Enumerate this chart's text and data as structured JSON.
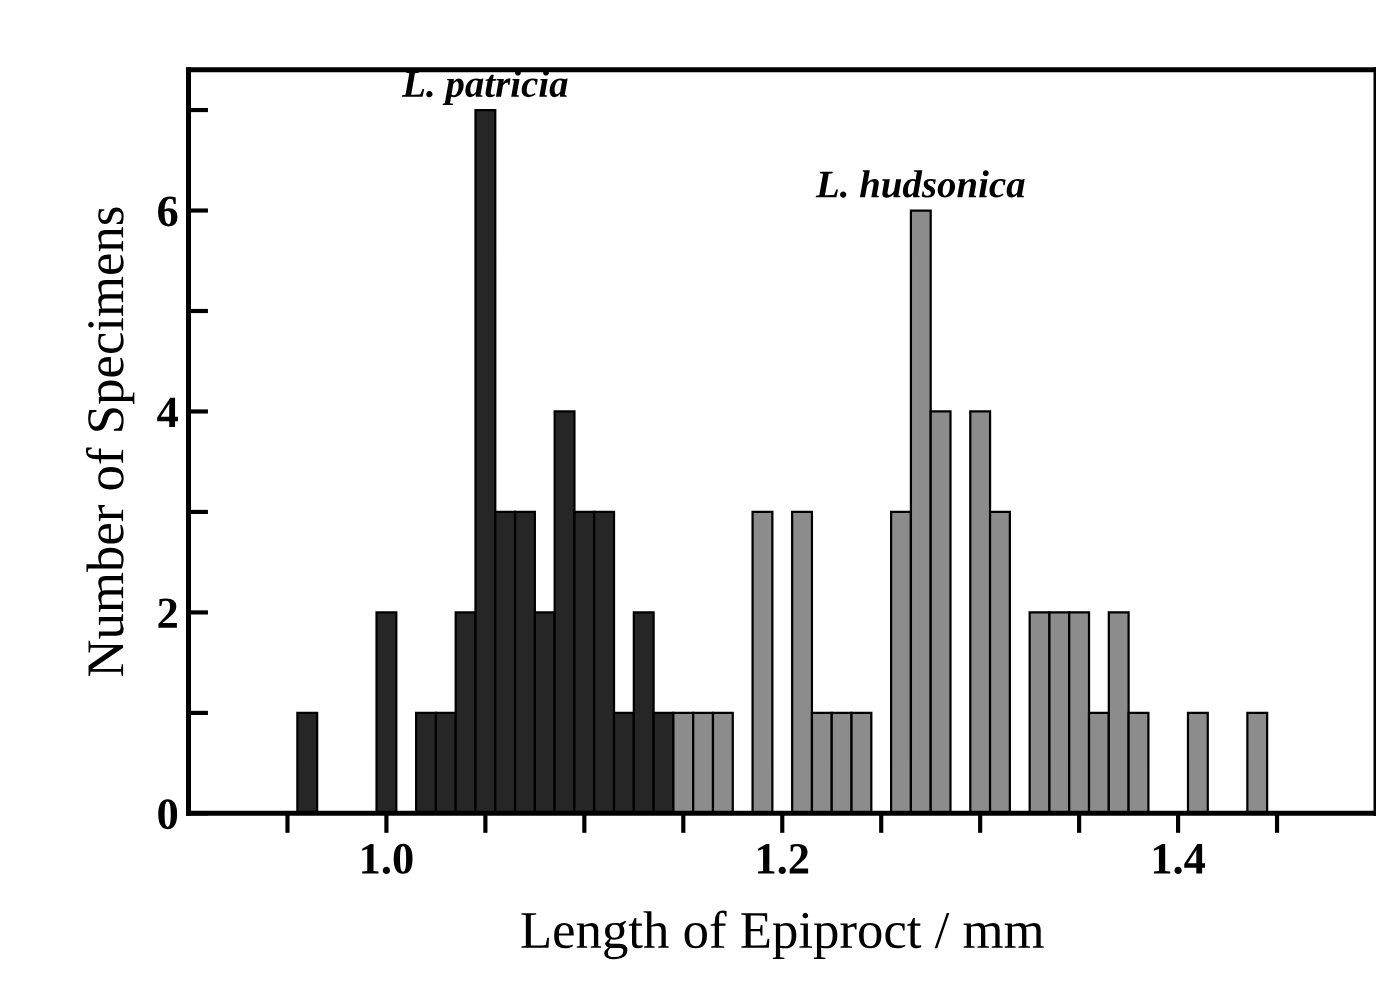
{
  "chart_data": {
    "type": "histogram",
    "xlabel": "Length of Epiproct / mm",
    "ylabel": "Number of Specimens",
    "bins": [
      0.955,
      0.965,
      0.975,
      0.985,
      0.995,
      1.005,
      1.015,
      1.025,
      1.035,
      1.045,
      1.055,
      1.065,
      1.075,
      1.085,
      1.095,
      1.105,
      1.115,
      1.125,
      1.135,
      1.145,
      1.155,
      1.165,
      1.175,
      1.185,
      1.195,
      1.205,
      1.215,
      1.225,
      1.235,
      1.245,
      1.255,
      1.265,
      1.275,
      1.285,
      1.295,
      1.305,
      1.315,
      1.325,
      1.335,
      1.345,
      1.355,
      1.365,
      1.375,
      1.385,
      1.395,
      1.405,
      1.415,
      1.425,
      1.435,
      1.445
    ],
    "series": [
      {
        "name": "L. patricia",
        "color": "#262626",
        "values": [
          1,
          0,
          0,
          0,
          2,
          0,
          1,
          1,
          2,
          7,
          3,
          3,
          2,
          4,
          3,
          3,
          1,
          2,
          1,
          null,
          null,
          null,
          null,
          null,
          null,
          null,
          null,
          null,
          null,
          null,
          null,
          null,
          null,
          null,
          null,
          null,
          null,
          null,
          null,
          null,
          null,
          null,
          null,
          null,
          null,
          null,
          null,
          null,
          null
        ]
      },
      {
        "name": "L. hudsonica",
        "color": "#8c8c8c",
        "values": [
          null,
          null,
          null,
          null,
          null,
          null,
          null,
          null,
          null,
          null,
          null,
          null,
          null,
          null,
          null,
          null,
          null,
          null,
          null,
          1,
          1,
          1,
          0,
          3,
          0,
          3,
          1,
          1,
          1,
          0,
          3,
          6,
          4,
          0,
          4,
          3,
          0,
          2,
          2,
          2,
          1,
          2,
          1,
          0,
          0,
          1,
          0,
          0,
          1
        ]
      }
    ],
    "xlim": [
      0.9,
      1.5
    ],
    "ylim": [
      0,
      7.4
    ],
    "xticks": [
      {
        "value": 0.95,
        "label": null
      },
      {
        "value": 1.0,
        "label": "1.0"
      },
      {
        "value": 1.05,
        "label": null
      },
      {
        "value": 1.1,
        "label": null
      },
      {
        "value": 1.15,
        "label": null
      },
      {
        "value": 1.2,
        "label": "1.2"
      },
      {
        "value": 1.25,
        "label": null
      },
      {
        "value": 1.3,
        "label": null
      },
      {
        "value": 1.35,
        "label": null
      },
      {
        "value": 1.4,
        "label": "1.4"
      },
      {
        "value": 1.45,
        "label": null
      }
    ],
    "yticks": [
      0,
      {
        "value": 1,
        "label": null
      },
      2,
      {
        "value": 3,
        "label": null
      },
      4,
      {
        "value": 5,
        "label": null
      },
      6,
      {
        "value": 7,
        "label": null
      }
    ],
    "grid": false
  }
}
